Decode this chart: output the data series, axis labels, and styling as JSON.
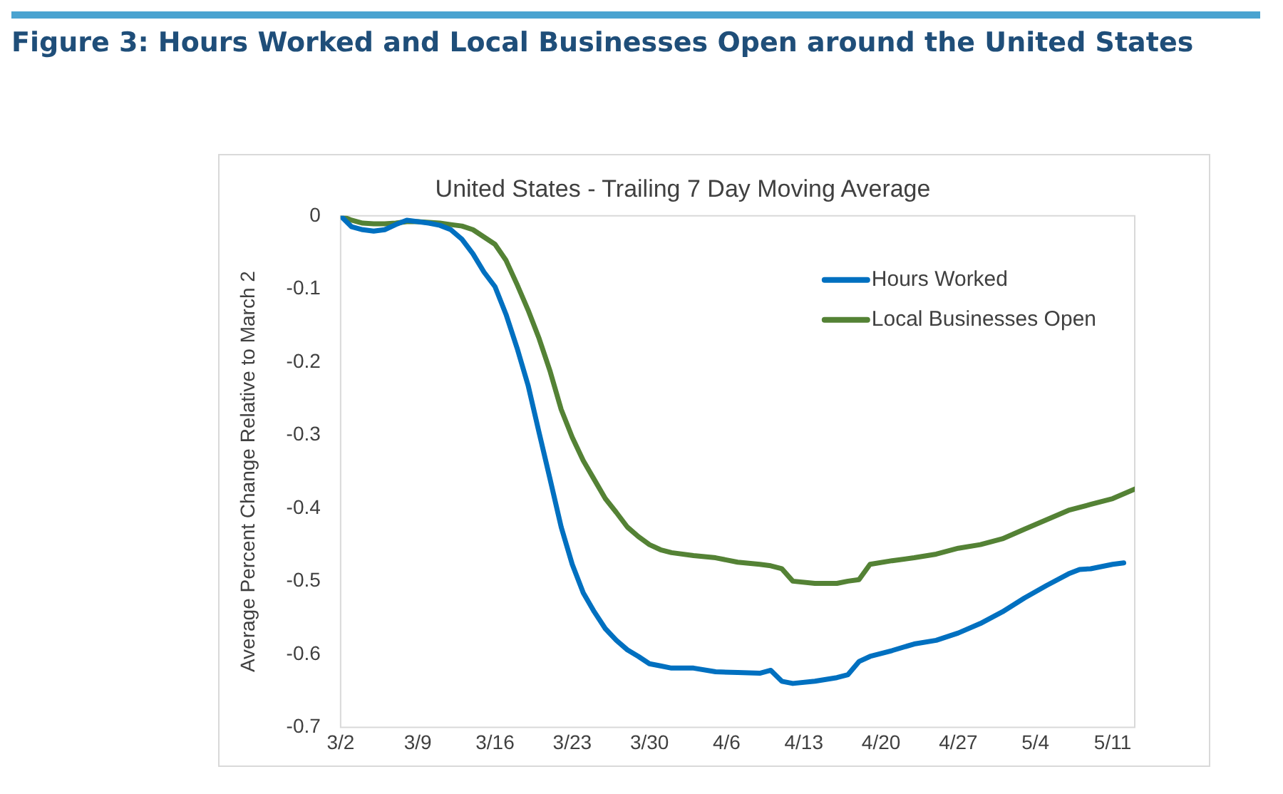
{
  "chart_data": {
    "type": "line",
    "title": "Figure 3: Hours Worked and Local Businesses Open around the United States",
    "subtitle": "United States - Trailing 7 Day Moving Average",
    "ylabel": "Average Percent Change Relative to March 2",
    "xlim": [
      "--03-02",
      "--05-13"
    ],
    "xticks": [
      {
        "value": "--03-02",
        "label": "3/2"
      },
      {
        "value": "--03-09",
        "label": "3/9"
      },
      {
        "value": "--03-16",
        "label": "3/16"
      },
      {
        "value": "--03-23",
        "label": "3/23"
      },
      {
        "value": "--03-30",
        "label": "3/30"
      },
      {
        "value": "--04-06",
        "label": "4/6"
      },
      {
        "value": "--04-13",
        "label": "4/13"
      },
      {
        "value": "--04-20",
        "label": "4/20"
      },
      {
        "value": "--04-27",
        "label": "4/27"
      },
      {
        "value": "--05-04",
        "label": "5/4"
      },
      {
        "value": "--05-11",
        "label": "5/11"
      }
    ],
    "ylim": [
      -0.7,
      0
    ],
    "yticks": [
      -0.7,
      -0.6,
      -0.5,
      -0.4,
      -0.3,
      -0.2,
      -0.1,
      0
    ],
    "grid": false,
    "legend": "top right",
    "marker": "none",
    "line_style": "solid",
    "series": [
      {
        "name": "Hours Worked",
        "color": "#0070c0",
        "x": [
          "--03-02",
          "--03-03",
          "--03-04",
          "--03-05",
          "--03-06",
          "--03-07",
          "--03-08",
          "--03-09",
          "--03-10",
          "--03-11",
          "--03-12",
          "--03-13",
          "--03-14",
          "--03-15",
          "--03-16",
          "--03-17",
          "--03-18",
          "--03-19",
          "--03-20",
          "--03-21",
          "--03-22",
          "--03-23",
          "--03-24",
          "--03-25",
          "--03-26",
          "--03-27",
          "--03-28",
          "--03-29",
          "--03-30",
          "--03-31",
          "--04-01",
          "--04-03",
          "--04-05",
          "--04-07",
          "--04-09",
          "--04-10",
          "--04-11",
          "--04-12",
          "--04-14",
          "--04-16",
          "--04-17",
          "--04-18",
          "--04-19",
          "--04-21",
          "--04-23",
          "--04-25",
          "--04-27",
          "--04-29",
          "--05-01",
          "--05-03",
          "--05-05",
          "--05-07",
          "--05-08",
          "--05-09",
          "--05-11",
          "--05-12"
        ],
        "values": [
          0,
          -0.015,
          -0.019,
          -0.021,
          -0.019,
          -0.012,
          -0.006,
          -0.008,
          -0.01,
          -0.013,
          -0.019,
          -0.032,
          -0.052,
          -0.077,
          -0.097,
          -0.135,
          -0.181,
          -0.232,
          -0.297,
          -0.361,
          -0.426,
          -0.477,
          -0.516,
          -0.542,
          -0.565,
          -0.581,
          -0.594,
          -0.603,
          -0.613,
          -0.616,
          -0.619,
          -0.619,
          -0.624,
          -0.625,
          -0.626,
          -0.622,
          -0.637,
          -0.64,
          -0.637,
          -0.632,
          -0.628,
          -0.61,
          -0.603,
          -0.595,
          -0.586,
          -0.581,
          -0.571,
          -0.558,
          -0.542,
          -0.523,
          -0.506,
          -0.49,
          -0.484,
          -0.483,
          -0.477,
          -0.475
        ]
      },
      {
        "name": "Local Businesses Open",
        "color": "#548235",
        "x": [
          "--03-02",
          "--03-03",
          "--03-04",
          "--03-05",
          "--03-06",
          "--03-07",
          "--03-08",
          "--03-09",
          "--03-10",
          "--03-11",
          "--03-12",
          "--03-13",
          "--03-14",
          "--03-15",
          "--03-16",
          "--03-17",
          "--03-18",
          "--03-19",
          "--03-20",
          "--03-21",
          "--03-22",
          "--03-23",
          "--03-24",
          "--03-25",
          "--03-26",
          "--03-27",
          "--03-28",
          "--03-29",
          "--03-30",
          "--03-31",
          "--04-01",
          "--04-03",
          "--04-05",
          "--04-07",
          "--04-09",
          "--04-10",
          "--04-11",
          "--04-12",
          "--04-14",
          "--04-16",
          "--04-17",
          "--04-18",
          "--04-19",
          "--04-21",
          "--04-23",
          "--04-25",
          "--04-27",
          "--04-29",
          "--05-01",
          "--05-03",
          "--05-05",
          "--05-07",
          "--05-09",
          "--05-11",
          "--05-13"
        ],
        "values": [
          0,
          -0.006,
          -0.01,
          -0.011,
          -0.011,
          -0.01,
          -0.008,
          -0.008,
          -0.009,
          -0.01,
          -0.012,
          -0.014,
          -0.019,
          -0.029,
          -0.039,
          -0.061,
          -0.094,
          -0.129,
          -0.168,
          -0.213,
          -0.265,
          -0.303,
          -0.335,
          -0.361,
          -0.387,
          -0.406,
          -0.426,
          -0.439,
          -0.45,
          -0.457,
          -0.461,
          -0.465,
          -0.468,
          -0.474,
          -0.477,
          -0.479,
          -0.483,
          -0.5,
          -0.503,
          -0.503,
          -0.5,
          -0.498,
          -0.477,
          -0.472,
          -0.468,
          -0.463,
          -0.455,
          -0.45,
          -0.442,
          -0.429,
          -0.416,
          -0.403,
          -0.395,
          -0.387,
          -0.374
        ]
      }
    ]
  }
}
